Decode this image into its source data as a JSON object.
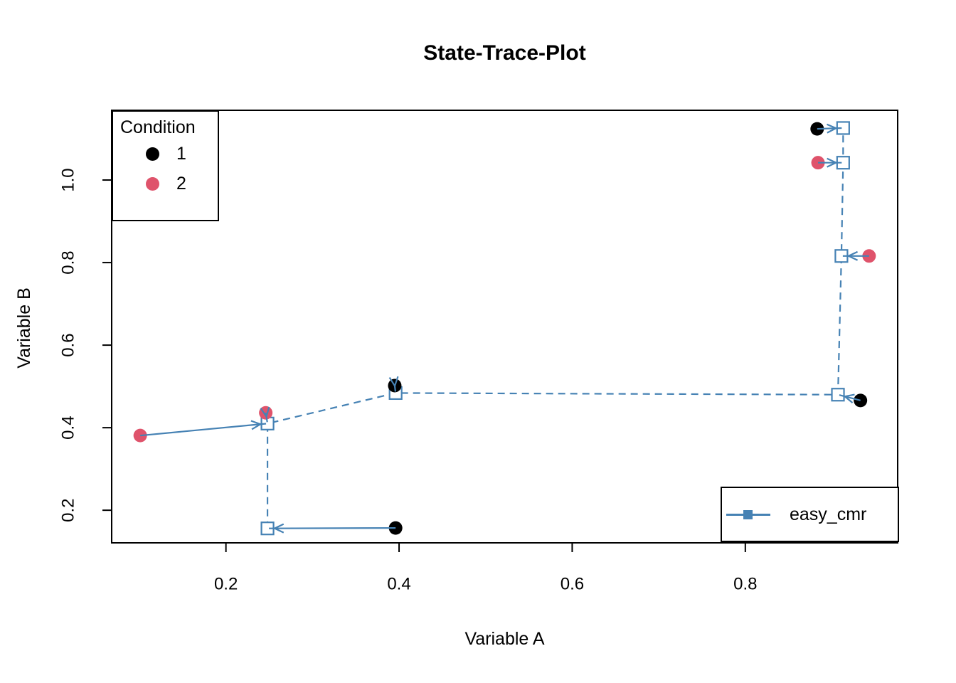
{
  "chart_data": {
    "type": "scatter",
    "title": "State-Trace-Plot",
    "xlabel": "Variable A",
    "ylabel": "Variable B",
    "xlim": [
      0.068,
      0.976
    ],
    "ylim": [
      0.121,
      1.169
    ],
    "x_ticks": [
      0.2,
      0.4,
      0.6,
      0.8
    ],
    "y_ticks": [
      0.2,
      0.4,
      0.6,
      0.8,
      1.0
    ],
    "grid": false,
    "series": [
      {
        "name": "Condition 1",
        "legend_label": "1",
        "color": "#000000",
        "marker": "filled-circle",
        "points": [
          [
            0.883,
            1.124
          ],
          [
            0.395,
            0.502
          ],
          [
            0.933,
            0.466
          ],
          [
            0.396,
            0.157
          ]
        ]
      },
      {
        "name": "Condition 2",
        "legend_label": "2",
        "color": "#DF536B",
        "marker": "filled-circle",
        "points": [
          [
            0.884,
            1.042
          ],
          [
            0.943,
            0.816
          ],
          [
            0.246,
            0.436
          ],
          [
            0.101,
            0.381
          ]
        ]
      },
      {
        "name": "easy_cmr",
        "color": "#4682B4",
        "marker": "open-square",
        "line_style": "dashed",
        "points": [
          [
            0.248,
            0.156
          ],
          [
            0.248,
            0.41
          ],
          [
            0.396,
            0.484
          ],
          [
            0.907,
            0.48
          ],
          [
            0.911,
            0.816
          ],
          [
            0.913,
            1.042
          ],
          [
            0.913,
            1.126
          ]
        ]
      }
    ],
    "arrows": [
      {
        "from": [
          0.883,
          1.124
        ],
        "to": [
          0.913,
          1.126
        ]
      },
      {
        "from": [
          0.884,
          1.042
        ],
        "to": [
          0.913,
          1.042
        ]
      },
      {
        "from": [
          0.943,
          0.816
        ],
        "to": [
          0.911,
          0.816
        ]
      },
      {
        "from": [
          0.933,
          0.466
        ],
        "to": [
          0.907,
          0.48
        ]
      },
      {
        "from": [
          0.395,
          0.502
        ],
        "to": [
          0.396,
          0.484
        ]
      },
      {
        "from": [
          0.246,
          0.436
        ],
        "to": [
          0.248,
          0.41
        ]
      },
      {
        "from": [
          0.101,
          0.381
        ],
        "to": [
          0.248,
          0.41
        ]
      },
      {
        "from": [
          0.396,
          0.157
        ],
        "to": [
          0.248,
          0.156
        ]
      }
    ],
    "legend_position": {
      "condition_legend": "top-left",
      "model_legend": "bottom-right"
    }
  },
  "legend_condition": {
    "title": "Condition",
    "items": [
      {
        "label": "1",
        "color": "#000000"
      },
      {
        "label": "2",
        "color": "#DF536B"
      }
    ]
  },
  "legend_model": {
    "label": "easy_cmr",
    "color": "#4682B4"
  },
  "style_colors": {
    "fit_blue": "#4682B4",
    "condition1_black": "#000000",
    "condition2_red": "#DF536B",
    "axis_black": "#000000",
    "background": "#ffffff"
  }
}
